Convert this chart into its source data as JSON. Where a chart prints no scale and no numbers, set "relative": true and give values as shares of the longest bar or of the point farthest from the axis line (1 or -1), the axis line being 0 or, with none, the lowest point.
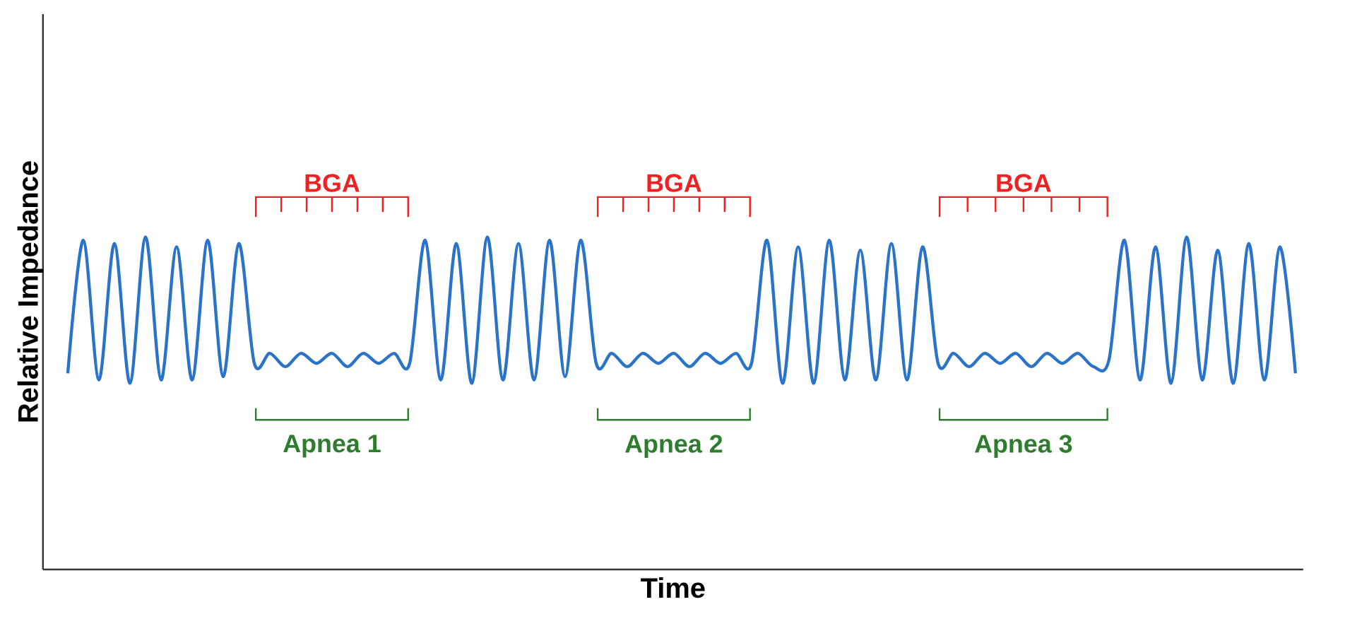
{
  "chart_data": {
    "type": "line",
    "relative": true,
    "xlabel": "Time",
    "ylabel": "Relative Impedance",
    "categories": [
      null,
      null,
      null,
      null,
      null,
      null,
      null,
      null,
      null,
      null,
      null,
      null,
      null,
      null,
      null,
      null,
      null,
      null,
      null,
      null,
      null,
      null,
      null,
      null,
      null,
      null,
      null,
      null,
      null,
      null,
      null,
      null,
      null,
      null,
      null,
      null,
      null,
      null,
      null,
      null,
      null,
      null,
      null,
      null,
      null,
      null,
      null,
      null,
      null,
      null,
      null,
      null,
      null,
      null,
      null,
      null,
      null,
      null,
      null,
      null,
      null,
      null,
      null,
      null,
      null,
      null,
      null,
      null,
      null,
      null,
      null,
      null,
      null,
      null,
      null,
      null,
      null,
      null,
      null,
      null
    ],
    "series": [
      {
        "color": "#2a73c8",
        "values": [
          0.59,
          0.99,
          0.57,
          0.98,
          0.56,
          1.0,
          0.57,
          0.97,
          0.57,
          0.99,
          0.58,
          0.98,
          0.62,
          0.65,
          0.61,
          0.65,
          0.62,
          0.65,
          0.61,
          0.65,
          0.62,
          0.65,
          0.62,
          0.99,
          0.57,
          0.98,
          0.56,
          1.0,
          0.57,
          0.98,
          0.57,
          0.99,
          0.58,
          0.99,
          0.62,
          0.65,
          0.61,
          0.65,
          0.62,
          0.65,
          0.61,
          0.65,
          0.62,
          0.65,
          0.62,
          0.99,
          0.56,
          0.97,
          0.56,
          0.99,
          0.57,
          0.96,
          0.57,
          0.98,
          0.57,
          0.97,
          0.62,
          0.65,
          0.61,
          0.65,
          0.62,
          0.65,
          0.61,
          0.65,
          0.62,
          0.65,
          0.61,
          0.63,
          0.99,
          0.57,
          0.97,
          0.56,
          1.0,
          0.57,
          0.96,
          0.56,
          0.98,
          0.57,
          0.97,
          0.59
        ]
      }
    ],
    "annotations": [
      "BGA",
      "Apnea 1",
      "BGA",
      "Apnea 2",
      "BGA",
      "Apnea 3"
    ],
    "marker": "none",
    "line_style": "solid"
  }
}
